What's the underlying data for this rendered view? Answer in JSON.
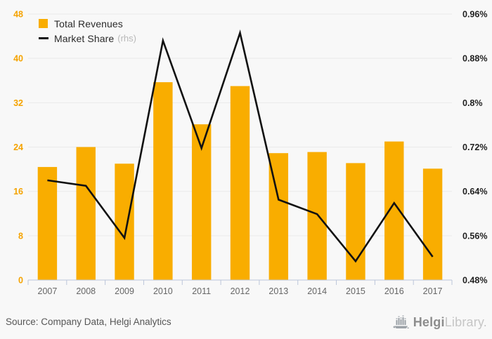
{
  "legend": {
    "items": [
      {
        "label": "Total Revenues",
        "swatch": "square",
        "swatch_color": "#F9AD00"
      },
      {
        "label": "Market Share",
        "suffix": "(rhs)",
        "swatch": "line",
        "swatch_color": "#111111"
      }
    ]
  },
  "chart_data": {
    "type": "bar",
    "subtype": "bar-line-combo",
    "title": "",
    "xlabel": "",
    "ylabel": "",
    "categories": [
      "2007",
      "2008",
      "2009",
      "2010",
      "2011",
      "2012",
      "2013",
      "2014",
      "2015",
      "2016",
      "2017"
    ],
    "series": [
      {
        "name": "Total Revenues",
        "type": "bar",
        "axis": "left",
        "color": "#F9AD00",
        "values": [
          20.4,
          24.0,
          21.0,
          35.7,
          28.1,
          35.0,
          22.9,
          23.1,
          21.1,
          25.0,
          20.1
        ]
      },
      {
        "name": "Market Share (rhs)",
        "type": "line",
        "axis": "right",
        "color": "#111111",
        "values": [
          0.66,
          0.65,
          0.556,
          0.912,
          0.718,
          0.926,
          0.625,
          0.599,
          0.514,
          0.619,
          0.522
        ]
      }
    ],
    "left_axis": {
      "min": 0,
      "max": 48,
      "ticks": [
        0,
        8,
        16,
        24,
        32,
        40,
        48
      ],
      "labels": [
        "0",
        "8",
        "16",
        "24",
        "32",
        "40",
        "48"
      ],
      "label_color": "#F5A300"
    },
    "right_axis": {
      "min": 0.48,
      "max": 0.96,
      "ticks": [
        0.48,
        0.56,
        0.64,
        0.72,
        0.8,
        0.88,
        0.96
      ],
      "labels": [
        "0.48%",
        "0.56%",
        "0.64%",
        "0.72%",
        "0.8%",
        "0.88%",
        "0.96%"
      ],
      "label_color": "#1f1f1f"
    },
    "grid": true,
    "legend_position": "top-left",
    "background": "#f8f8f8",
    "gridline_color": "#eaeaea",
    "axis_color": "#bcc6da",
    "category_label_color": "#666666"
  },
  "footer": {
    "source": "Source: Company Data, Helgi Analytics",
    "logo": {
      "brand": "Helgi",
      "brand2": "Library."
    }
  }
}
